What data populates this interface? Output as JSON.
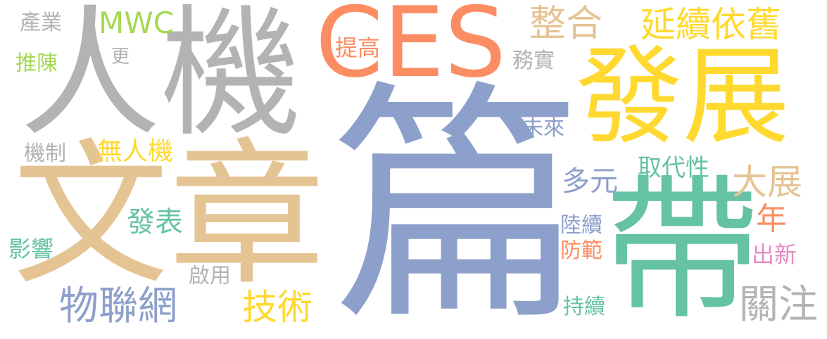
{
  "words": {
    "pian": "篇",
    "wenzhang": "文章",
    "renji": "人機",
    "fazhan": "發展",
    "dai": "帶",
    "ces": "CES",
    "zhenghe": "整合",
    "yanxu": "延續依舊",
    "jishu": "技術",
    "wulian": "物聯網",
    "guanzhu": "關注",
    "dazhan": "大展",
    "fabiao": "發表",
    "duoyuan": "多元",
    "mwc": "MWC",
    "wurenji": "無人機",
    "quxing": "取代性",
    "tigao": "提高",
    "chanye": "產業",
    "tuichen": "推陳",
    "geng": "更",
    "wushi": "務實",
    "weilai": "未來",
    "jizhi": "機制",
    "yingxiang": "影響",
    "qiyong": "啟用",
    "luxu": "陸續",
    "fangfan": "防範",
    "chixu": "持續",
    "nian": "年",
    "chuxin": "出新"
  },
  "palette": {
    "gray": "#b3b3b3",
    "tan": "#e5c494",
    "blue": "#8da0cb",
    "green": "#66c2a5",
    "orange": "#fc8d62",
    "yellow": "#ffd92f",
    "lime": "#a6d854",
    "pink": "#e78ac3"
  }
}
